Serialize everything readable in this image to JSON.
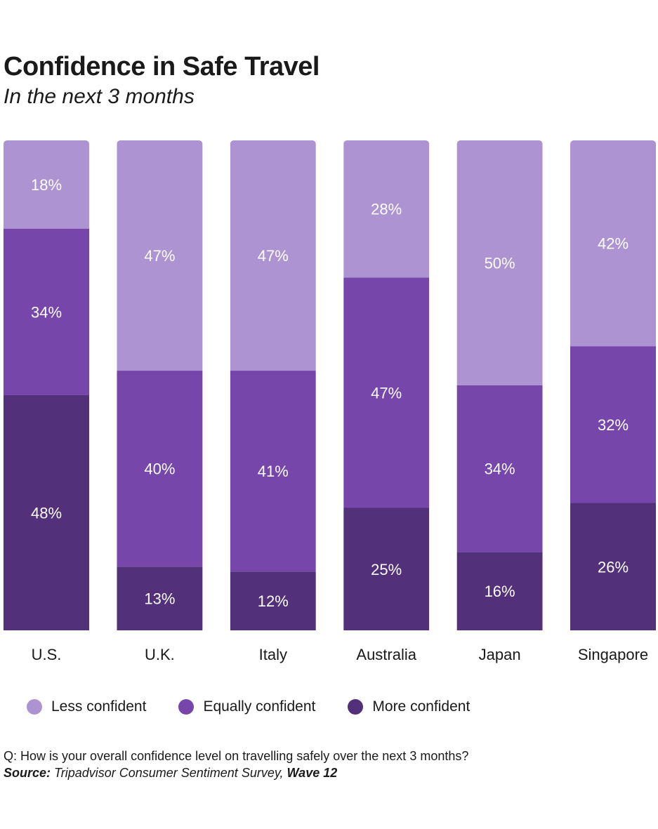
{
  "header": {
    "title": "Confidence in Safe Travel",
    "subtitle": "In the next 3 months"
  },
  "chart_data": {
    "type": "bar",
    "stacked": true,
    "orientation": "vertical",
    "title": "Confidence in Safe Travel",
    "subtitle": "In the next 3 months",
    "categories": [
      "U.S.",
      "U.K.",
      "Italy",
      "Australia",
      "Japan",
      "Singapore"
    ],
    "series": [
      {
        "name": "More confident",
        "color": "#52307a",
        "values": [
          48,
          13,
          12,
          25,
          16,
          26
        ]
      },
      {
        "name": "Equally confident",
        "color": "#7646ab",
        "values": [
          34,
          40,
          41,
          47,
          34,
          32
        ]
      },
      {
        "name": "Less confident",
        "color": "#ae93d2",
        "values": [
          18,
          47,
          47,
          28,
          50,
          42
        ]
      }
    ],
    "ylim": [
      0,
      100
    ],
    "legend_position": "bottom",
    "label_format": "{v}%"
  },
  "legend": {
    "items": [
      {
        "label": "Less confident",
        "color": "#ae93d2"
      },
      {
        "label": "Equally confident",
        "color": "#7646ab"
      },
      {
        "label": "More confident",
        "color": "#52307a"
      }
    ]
  },
  "footnote": {
    "question_prefix": "Q:",
    "question": "How is your overall confidence level on travelling safely over the next 3 months?",
    "source_label": "Source:",
    "source_text": "Tripadvisor Consumer Sentiment Survey,",
    "source_wave": "Wave 12"
  }
}
